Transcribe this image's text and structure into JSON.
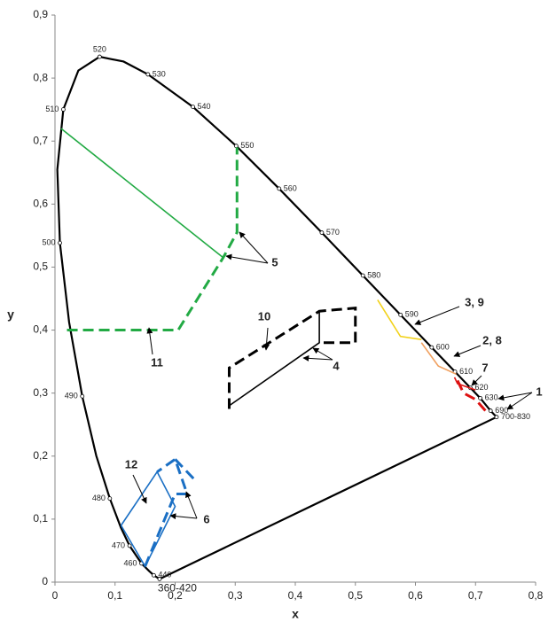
{
  "chart_data": {
    "type": "line",
    "xlabel": "x",
    "ylabel": "y",
    "xlim": [
      0,
      0.8
    ],
    "ylim": [
      0,
      0.9
    ],
    "xticks": [
      0,
      {
        "value": 0.1,
        "label": "0,1"
      },
      {
        "value": 0.2,
        "label": "0,2"
      },
      {
        "value": 0.3,
        "label": "0,3"
      },
      {
        "value": 0.4,
        "label": "0,4"
      },
      {
        "value": 0.5,
        "label": "0,5"
      },
      {
        "value": 0.6,
        "label": "0,6"
      },
      {
        "value": 0.7,
        "label": "0,7"
      },
      {
        "value": 0.8,
        "label": "0,8"
      }
    ],
    "yticks": [
      0,
      {
        "value": 0.1,
        "label": "0,1"
      },
      {
        "value": 0.2,
        "label": "0,2"
      },
      {
        "value": 0.3,
        "label": "0,3"
      },
      {
        "value": 0.4,
        "label": "0,4"
      },
      {
        "value": 0.5,
        "label": "0,5"
      },
      {
        "value": 0.6,
        "label": "0,6"
      },
      {
        "value": 0.7,
        "label": "0,7"
      },
      {
        "value": 0.8,
        "label": "0,8"
      },
      {
        "value": 0.9,
        "label": "0,9"
      }
    ],
    "grid": false,
    "locus": {
      "color": "#000000",
      "x": [
        0.1741,
        0.1644,
        0.1566,
        0.144,
        0.1241,
        0.1096,
        0.0913,
        0.0687,
        0.0454,
        0.0235,
        0.0082,
        0.0039,
        0.0139,
        0.0389,
        0.0743,
        0.1142,
        0.1547,
        0.2296,
        0.3016,
        0.3731,
        0.4441,
        0.5125,
        0.5752,
        0.627,
        0.6658,
        0.6915,
        0.7079,
        0.725,
        0.735
      ],
      "y": [
        0.005,
        0.0109,
        0.0177,
        0.0297,
        0.0578,
        0.0868,
        0.1327,
        0.2007,
        0.295,
        0.4127,
        0.5384,
        0.6548,
        0.7502,
        0.812,
        0.8338,
        0.8262,
        0.8059,
        0.7543,
        0.6923,
        0.6245,
        0.5547,
        0.4866,
        0.4242,
        0.3725,
        0.334,
        0.3083,
        0.292,
        0.272,
        0.262
      ],
      "labels": [
        "360-420",
        "440",
        null,
        "460",
        "470",
        null,
        "480",
        null,
        "490",
        null,
        "500",
        null,
        "510",
        null,
        "520",
        null,
        "530",
        "540",
        "550",
        "560",
        "570",
        "580",
        "590",
        "600",
        "610",
        "620",
        "630",
        "690",
        "700-830"
      ]
    },
    "series": [
      {
        "color": "#22aa44",
        "dashed": false,
        "x": [
          0.01,
          0.28
        ],
        "y": [
          0.72,
          0.515
        ]
      },
      {
        "color": "#22aa44",
        "dashed": true,
        "x": [
          0.02,
          0.205,
          0.28,
          0.303,
          0.303
        ],
        "y": [
          0.4,
          0.4,
          0.515,
          0.555,
          0.69
        ]
      },
      {
        "color": "#000000",
        "dashed": true,
        "x": [
          0.29,
          0.29,
          0.44,
          0.5,
          0.5,
          0.44
        ],
        "y": [
          0.275,
          0.34,
          0.43,
          0.435,
          0.38,
          0.38
        ]
      },
      {
        "color": "#000000",
        "dashed": false,
        "x": [
          0.29,
          0.44,
          0.44
        ],
        "y": [
          0.28,
          0.38,
          0.43
        ]
      },
      {
        "color": "#f2d21b",
        "dashed": false,
        "x": [
          0.537,
          0.575,
          0.61
        ],
        "y": [
          0.448,
          0.39,
          0.385
        ]
      },
      {
        "color": "#f0a060",
        "dashed": false,
        "x": [
          0.61,
          0.638,
          0.668
        ],
        "y": [
          0.38,
          0.343,
          0.33
        ]
      },
      {
        "color": "#dd1111",
        "dashed": false,
        "x": [
          0.665,
          0.67,
          0.7
        ],
        "y": [
          0.325,
          0.315,
          0.305
        ]
      },
      {
        "color": "#dd1111",
        "dashed": true,
        "x": [
          0.67,
          0.68,
          0.7,
          0.722
        ],
        "y": [
          0.32,
          0.3,
          0.29,
          0.266
        ]
      },
      {
        "color": "#1a6fc4",
        "dashed": false,
        "x": [
          0.11,
          0.15,
          0.2,
          0.17,
          0.11
        ],
        "y": [
          0.09,
          0.025,
          0.12,
          0.175,
          0.09
        ]
      },
      {
        "color": "#1a6fc4",
        "dashed": true,
        "x": [
          0.15,
          0.2,
          0.22,
          0.2,
          0.17
        ],
        "y": [
          0.025,
          0.14,
          0.14,
          0.195,
          0.175
        ]
      },
      {
        "color": "#1a6fc4",
        "dashed": true,
        "x": [
          0.2,
          0.235
        ],
        "y": [
          0.195,
          0.16
        ]
      }
    ],
    "annotations": [
      "1",
      "2, 8",
      "3, 9",
      "4",
      "5",
      "6",
      "7",
      "10",
      "11",
      "12"
    ]
  }
}
